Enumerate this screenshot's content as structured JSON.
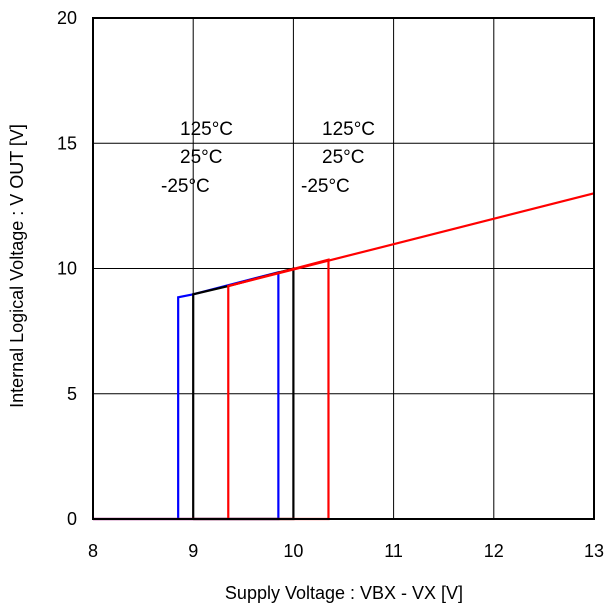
{
  "chart_data": {
    "type": "line",
    "title": "",
    "xlabel": "Supply Voltage : VBX - VX [V]",
    "ylabel": "Internal Logical Voltage : V OUT [V]",
    "xlim": [
      8,
      13
    ],
    "ylim": [
      0,
      20
    ],
    "xticks": [
      8,
      9,
      10,
      11,
      12,
      13
    ],
    "yticks": [
      0,
      5,
      10,
      15,
      20
    ],
    "grid": true,
    "colors": {
      "blue": "#0000ff",
      "black": "#000000",
      "red": "#ff0000"
    },
    "series": [
      {
        "color": "#0000ff",
        "points": [
          [
            8.0,
            0
          ],
          [
            8.85,
            0
          ],
          [
            8.85,
            8.85
          ],
          [
            9.0,
            8.97
          ],
          [
            9.85,
            9.85
          ],
          [
            9.85,
            0
          ],
          [
            8.85,
            0
          ]
        ]
      },
      {
        "color": "#000000",
        "points": [
          [
            9.0,
            0
          ],
          [
            9.0,
            8.97
          ],
          [
            9.35,
            9.3
          ],
          [
            10.0,
            10.0
          ],
          [
            10.0,
            0
          ],
          [
            9.0,
            0
          ]
        ]
      },
      {
        "color": "#ff0000",
        "points": [
          [
            8.0,
            0
          ],
          [
            10.35,
            0
          ],
          [
            10.35,
            10.35
          ],
          [
            9.35,
            9.3
          ],
          [
            9.35,
            0
          ]
        ]
      },
      {
        "color": "#ff0000",
        "points": [
          [
            9.35,
            9.3
          ],
          [
            13.0,
            13.0
          ]
        ]
      }
    ],
    "annotations": [
      {
        "lines": [
          "125°C",
          "25°C",
          "-25°C"
        ]
      },
      {
        "lines": [
          "125°C",
          "25°C",
          "-25°C"
        ]
      }
    ]
  }
}
